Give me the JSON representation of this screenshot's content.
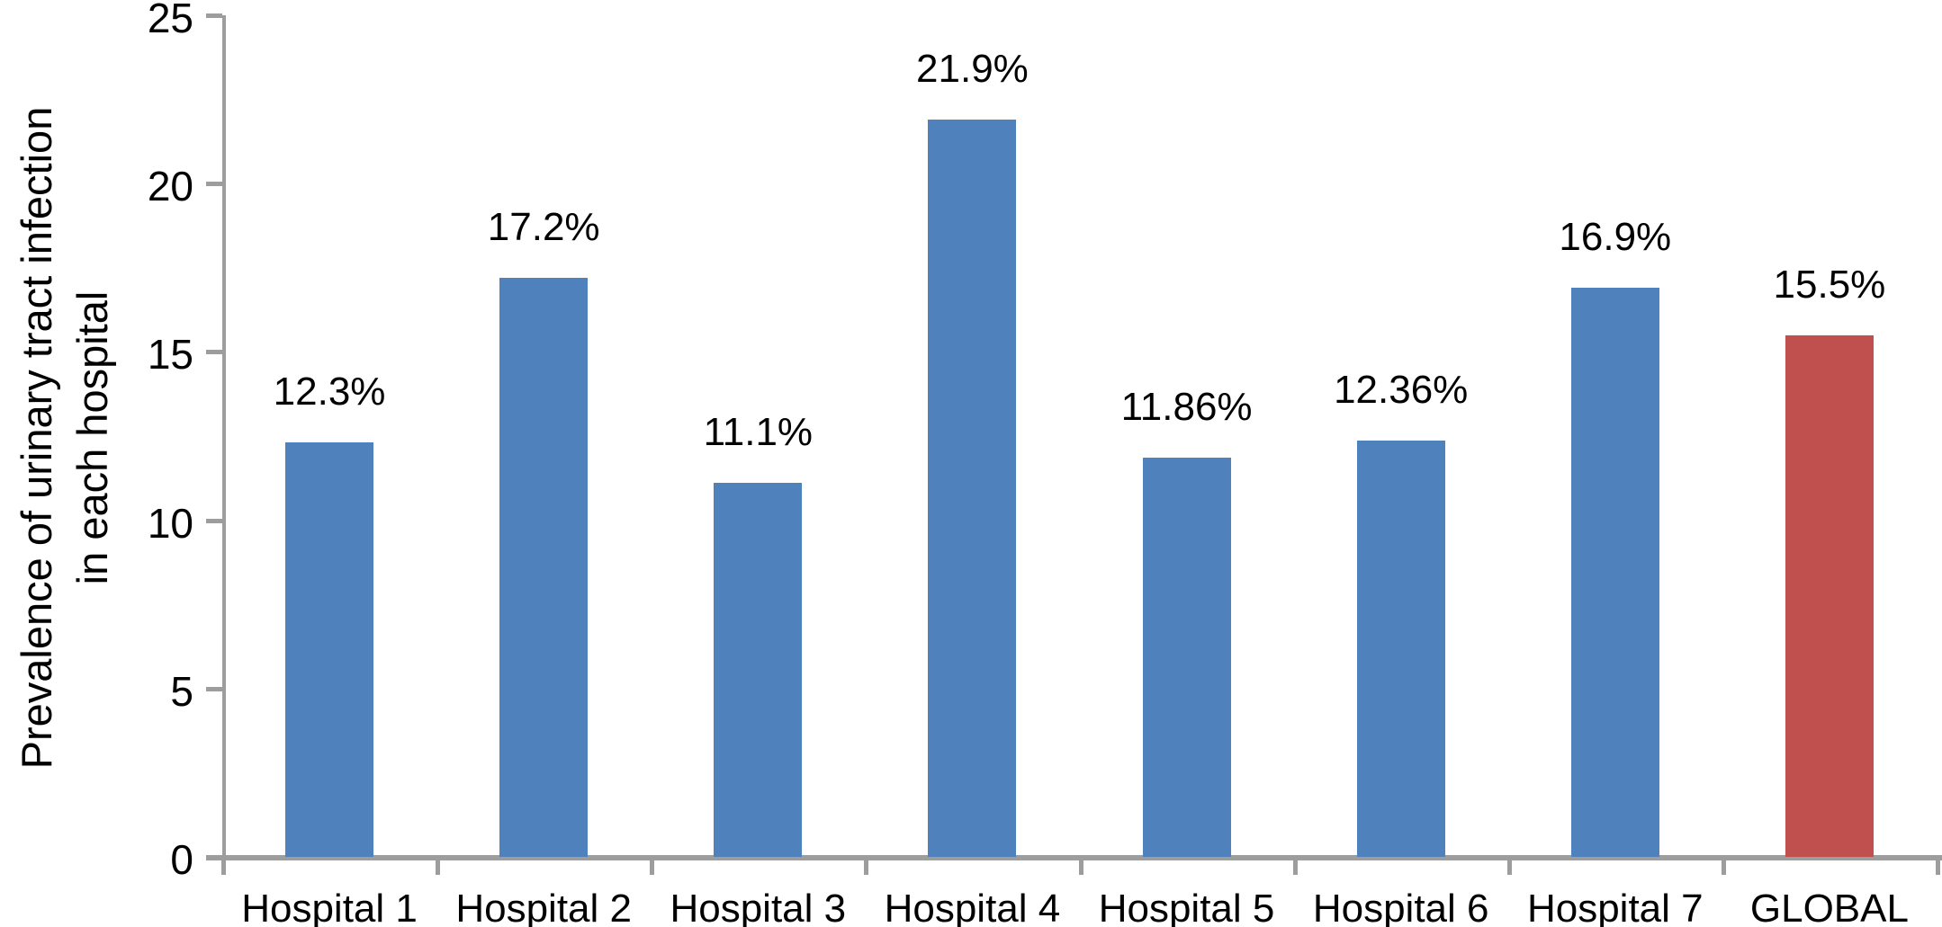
{
  "chart_data": {
    "type": "bar",
    "title": "",
    "ylabel_line1": "Prevalence of urinary tract infection",
    "ylabel_line2": "in each hospital",
    "xlabel": "",
    "categories": [
      "Hospital 1",
      "Hospital 2",
      "Hospital 3",
      "Hospital 4",
      "Hospital 5",
      "Hospital 6",
      "Hospital 7",
      "GLOBAL"
    ],
    "values": [
      12.3,
      17.2,
      11.1,
      21.9,
      11.86,
      12.36,
      16.9,
      15.5
    ],
    "value_labels": [
      "12.3%",
      "17.2%",
      "11.1%",
      "21.9%",
      "11.86%",
      "12.36%",
      "16.9%",
      "15.5%"
    ],
    "bar_colors": [
      "#4F81BD",
      "#4F81BD",
      "#4F81BD",
      "#4F81BD",
      "#4F81BD",
      "#4F81BD",
      "#4F81BD",
      "#C0504D"
    ],
    "y_ticks": [
      0,
      5,
      10,
      15,
      20,
      25
    ],
    "ylim": [
      0,
      25
    ],
    "grid": false,
    "legend": "none",
    "axis_color": "#9D9D9D",
    "text_color": "#000000",
    "background_color": "#FFFFFF"
  }
}
